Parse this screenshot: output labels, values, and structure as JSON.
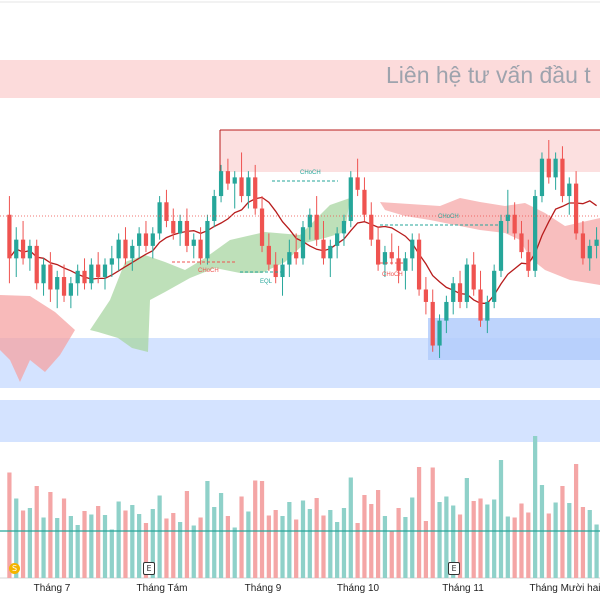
{
  "watermark": "Liên hệ tư vấn đầu t",
  "colors": {
    "up": "#26a69a",
    "down": "#ef5350",
    "vol_up": "#8fd1c9",
    "vol_down": "#f4a6a6",
    "kumo_bull": "#a8d5a2",
    "kumo_bear": "#f5a3a3",
    "demand_zone": "#c9dcff",
    "supply_zone": "#fbd5d5",
    "trend_line": "#b71c1c"
  },
  "annotations": [
    {
      "label": "CHoCH",
      "color": "#26a69a"
    },
    {
      "label": "CHoCH",
      "color": "#ef5350"
    },
    {
      "label": "CHoCH",
      "color": "#ef5350"
    },
    {
      "label": "CHoCH",
      "color": "#26a69a"
    },
    {
      "label": "EQL",
      "color": "#26a69a"
    }
  ],
  "badges": {
    "earnings": "E",
    "dividend": "S"
  },
  "chart_data": {
    "type": "candlestick",
    "x_tick_labels": [
      "Tháng 7",
      "Tháng Tám",
      "Tháng 9",
      "Tháng 10",
      "Tháng 11",
      "Tháng Mười hai"
    ],
    "grid": false,
    "series": [
      {
        "values": [
          [
            13.6,
            13.9,
            12.5,
            12.9
          ],
          [
            12.9,
            13.4,
            12.6,
            13.2
          ],
          [
            13.2,
            13.5,
            12.8,
            12.9
          ],
          [
            12.9,
            13.2,
            12.7,
            13.1
          ],
          [
            13.1,
            13.2,
            12.4,
            12.5
          ],
          [
            12.5,
            12.9,
            12.3,
            12.8
          ],
          [
            12.8,
            13.0,
            12.2,
            12.4
          ],
          [
            12.4,
            12.7,
            12.1,
            12.6
          ],
          [
            12.6,
            12.8,
            12.2,
            12.3
          ],
          [
            12.3,
            12.6,
            12.1,
            12.5
          ],
          [
            12.5,
            12.8,
            12.3,
            12.7
          ],
          [
            12.7,
            12.9,
            12.4,
            12.5
          ],
          [
            12.5,
            12.9,
            12.4,
            12.8
          ],
          [
            12.8,
            13.0,
            12.5,
            12.6
          ],
          [
            12.6,
            12.9,
            12.4,
            12.8
          ],
          [
            12.8,
            13.1,
            12.6,
            12.9
          ],
          [
            12.9,
            13.3,
            12.7,
            13.2
          ],
          [
            13.2,
            13.4,
            12.8,
            12.9
          ],
          [
            12.9,
            13.2,
            12.7,
            13.1
          ],
          [
            13.1,
            13.4,
            12.9,
            13.3
          ],
          [
            13.3,
            13.5,
            13.0,
            13.1
          ],
          [
            13.1,
            13.4,
            12.9,
            13.3
          ],
          [
            13.3,
            13.9,
            13.2,
            13.8
          ],
          [
            13.8,
            14.0,
            13.4,
            13.5
          ],
          [
            13.5,
            13.7,
            13.2,
            13.3
          ],
          [
            13.3,
            13.6,
            13.1,
            13.5
          ],
          [
            13.5,
            13.7,
            13.0,
            13.1
          ],
          [
            13.1,
            13.3,
            12.9,
            13.2
          ],
          [
            13.2,
            13.4,
            12.8,
            12.9
          ],
          [
            12.9,
            13.6,
            12.8,
            13.5
          ],
          [
            13.5,
            14.0,
            13.4,
            13.9
          ],
          [
            13.9,
            14.4,
            13.8,
            14.3
          ],
          [
            14.3,
            14.5,
            14.0,
            14.1
          ],
          [
            14.1,
            14.3,
            13.7,
            14.2
          ],
          [
            14.2,
            14.6,
            13.8,
            13.9
          ],
          [
            13.9,
            14.3,
            13.7,
            14.2
          ],
          [
            14.2,
            14.4,
            13.6,
            13.7
          ],
          [
            13.7,
            13.9,
            13.0,
            13.1
          ],
          [
            13.1,
            13.3,
            12.7,
            12.8
          ],
          [
            12.8,
            13.0,
            12.5,
            12.6
          ],
          [
            12.6,
            12.9,
            12.3,
            12.8
          ],
          [
            12.8,
            13.2,
            12.6,
            13.0
          ],
          [
            13.0,
            13.3,
            12.8,
            12.9
          ],
          [
            12.9,
            13.5,
            12.8,
            13.4
          ],
          [
            13.4,
            13.7,
            13.2,
            13.6
          ],
          [
            13.6,
            13.9,
            13.1,
            13.2
          ],
          [
            13.2,
            13.5,
            12.8,
            12.9
          ],
          [
            12.9,
            13.2,
            12.6,
            13.1
          ],
          [
            13.1,
            13.4,
            12.9,
            13.3
          ],
          [
            13.3,
            13.6,
            13.1,
            13.5
          ],
          [
            13.5,
            14.3,
            13.4,
            14.2
          ],
          [
            14.2,
            14.5,
            13.9,
            14.0
          ],
          [
            14.0,
            14.2,
            13.5,
            13.6
          ],
          [
            13.6,
            13.8,
            13.1,
            13.2
          ],
          [
            13.2,
            13.4,
            12.7,
            12.8
          ],
          [
            12.8,
            13.1,
            12.6,
            13.0
          ],
          [
            13.0,
            13.3,
            12.8,
            12.9
          ],
          [
            12.9,
            13.1,
            12.5,
            12.7
          ],
          [
            12.7,
            13.0,
            12.4,
            12.9
          ],
          [
            12.9,
            13.3,
            12.7,
            13.2
          ],
          [
            13.2,
            13.3,
            12.3,
            12.4
          ],
          [
            12.4,
            12.6,
            12.0,
            12.2
          ],
          [
            12.2,
            12.4,
            11.4,
            11.5
          ],
          [
            11.5,
            12.0,
            11.3,
            11.9
          ],
          [
            11.9,
            12.3,
            11.7,
            12.2
          ],
          [
            12.2,
            12.6,
            12.0,
            12.5
          ],
          [
            12.5,
            12.7,
            12.1,
            12.2
          ],
          [
            12.2,
            12.9,
            12.1,
            12.8
          ],
          [
            12.8,
            13.0,
            12.3,
            12.4
          ],
          [
            12.4,
            12.7,
            11.8,
            11.9
          ],
          [
            11.9,
            12.3,
            11.7,
            12.2
          ],
          [
            12.2,
            12.8,
            12.1,
            12.7
          ],
          [
            12.7,
            13.6,
            12.6,
            13.5
          ],
          [
            13.5,
            14.0,
            13.3,
            13.6
          ],
          [
            13.6,
            13.8,
            13.2,
            13.3
          ],
          [
            13.3,
            13.5,
            12.9,
            13.0
          ],
          [
            13.0,
            13.2,
            12.6,
            12.7
          ],
          [
            12.7,
            14.0,
            12.6,
            13.9
          ],
          [
            13.9,
            14.6,
            13.8,
            14.5
          ],
          [
            14.5,
            14.8,
            14.1,
            14.2
          ],
          [
            14.2,
            14.6,
            14.0,
            14.5
          ],
          [
            14.5,
            14.7,
            13.8,
            13.9
          ],
          [
            13.9,
            14.2,
            13.6,
            14.1
          ],
          [
            14.1,
            14.3,
            13.2,
            13.3
          ],
          [
            13.3,
            13.5,
            12.8,
            12.9
          ],
          [
            12.9,
            13.2,
            12.7,
            13.1
          ],
          [
            13.1,
            13.4,
            12.9,
            13.2
          ]
        ]
      }
    ]
  }
}
